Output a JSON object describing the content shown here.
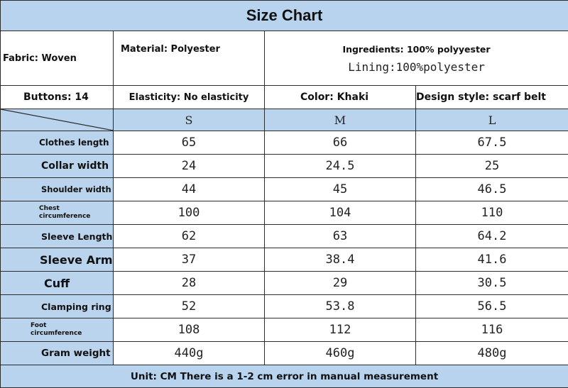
{
  "title": "Size Chart",
  "info": {
    "fabric": "Fabric: Woven",
    "material": "Material: Polyester",
    "ingredients": "Ingredients: 100% polyyester",
    "lining": "Lining:100%polyester",
    "buttons": "Buttons: 14",
    "elasticity": "Elasticity: No elasticity",
    "color": "Color: Khaki",
    "design_style": "Design style: scarf belt"
  },
  "sizes": [
    "S",
    "M",
    "L"
  ],
  "rows": [
    {
      "label": "Clothes length",
      "values": [
        "65",
        "66",
        "67.5"
      ]
    },
    {
      "label": "Collar width",
      "values": [
        "24",
        "24.5",
        "25"
      ]
    },
    {
      "label": "Shoulder width",
      "values": [
        "44",
        "45",
        "46.5"
      ]
    },
    {
      "label": "Chest circumference",
      "values": [
        "100",
        "104",
        "110"
      ]
    },
    {
      "label": "Sleeve Length",
      "values": [
        "62",
        "63",
        "64.2"
      ]
    },
    {
      "label": "Sleeve Arm",
      "values": [
        "37",
        "38.4",
        "41.6"
      ]
    },
    {
      "label": "Cuff",
      "values": [
        "28",
        "29",
        "30.5"
      ]
    },
    {
      "label": "Clamping ring",
      "values": [
        "52",
        "53.8",
        "56.5"
      ]
    },
    {
      "label": "Foot circumference",
      "values": [
        "108",
        "112",
        "116"
      ]
    },
    {
      "label": "Gram weight",
      "values": [
        "440g",
        "460g",
        "480g"
      ]
    }
  ],
  "footer": "Unit: CM There is a 1-2 cm error in manual measurement",
  "colors": {
    "header_blue": "#bad4ee",
    "border": "#2b2b2b"
  }
}
